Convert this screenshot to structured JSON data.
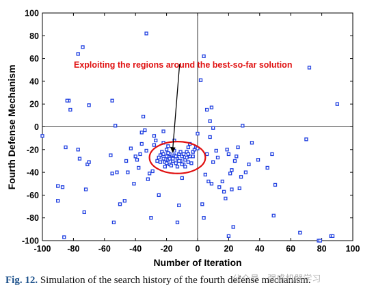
{
  "chart_data": {
    "type": "scatter",
    "xlabel": "Number of Iteration",
    "ylabel": "Fourth Defense Mechanism",
    "xlim": [
      -100,
      100
    ],
    "ylim": [
      -100,
      100
    ],
    "x_ticks": [
      -100,
      -80,
      -60,
      -40,
      -20,
      0,
      20,
      40,
      60,
      80,
      100
    ],
    "y_ticks": [
      -100,
      -80,
      -60,
      -40,
      -20,
      0,
      20,
      40,
      60,
      80,
      100
    ],
    "grid": false,
    "zero_lines": true,
    "marker": "hollow-square",
    "marker_color": "#1f3fe0",
    "annotation": {
      "text": "Exploiting the regions around the best-so-far solution",
      "color": "#e01010",
      "ellipse_center": [
        -13,
        -27
      ],
      "ellipse_radii": [
        18,
        14
      ],
      "arrow_from": [
        -16,
        55
      ],
      "arrow_to": [
        -16,
        -23
      ]
    },
    "points": [
      [
        -100,
        -8
      ],
      [
        -85,
        -18
      ],
      [
        -83,
        23
      ],
      [
        -84,
        23
      ],
      [
        -82,
        15
      ],
      [
        -77,
        64
      ],
      [
        -74,
        70
      ],
      [
        -70,
        19
      ],
      [
        -55,
        23
      ],
      [
        -53,
        1
      ],
      [
        -33,
        82
      ],
      [
        2,
        41
      ],
      [
        4,
        62
      ],
      [
        72,
        52
      ],
      [
        90,
        20
      ],
      [
        -90,
        -52
      ],
      [
        -90,
        -65
      ],
      [
        -87,
        -53
      ],
      [
        -86,
        -97
      ],
      [
        -77,
        -20
      ],
      [
        -76,
        -28
      ],
      [
        -73,
        -75
      ],
      [
        -72,
        -55
      ],
      [
        -71,
        -33
      ],
      [
        -70,
        -31
      ],
      [
        -56,
        -25
      ],
      [
        -55,
        -41
      ],
      [
        -54,
        -84
      ],
      [
        -52,
        -40
      ],
      [
        -50,
        -68
      ],
      [
        -47,
        -65
      ],
      [
        -46,
        -30
      ],
      [
        -45,
        -40
      ],
      [
        -43,
        -19
      ],
      [
        -41,
        -50
      ],
      [
        -40,
        -26
      ],
      [
        -39,
        -29
      ],
      [
        -38,
        -36
      ],
      [
        -37,
        -24
      ],
      [
        -36,
        -15
      ],
      [
        -36,
        -5
      ],
      [
        -35,
        9
      ],
      [
        -34,
        -3
      ],
      [
        -33,
        -21
      ],
      [
        -32,
        -46
      ],
      [
        -31,
        -41
      ],
      [
        -30,
        -80
      ],
      [
        -29,
        -39
      ],
      [
        -28,
        -16
      ],
      [
        -28,
        -8
      ],
      [
        -27,
        -12
      ],
      [
        -26,
        -30
      ],
      [
        -25,
        -60
      ],
      [
        -22,
        -4
      ],
      [
        -22,
        -14
      ],
      [
        -20,
        -20
      ],
      [
        -19,
        -17
      ],
      [
        -18,
        -24
      ],
      [
        -24,
        -25
      ],
      [
        -22,
        -28
      ],
      [
        -21,
        -31
      ],
      [
        -20,
        -26
      ],
      [
        -19,
        -29
      ],
      [
        -18,
        -33
      ],
      [
        -17,
        -27
      ],
      [
        -16,
        -30
      ],
      [
        -15,
        -25
      ],
      [
        -14,
        -32
      ],
      [
        -13,
        -28
      ],
      [
        -12,
        -24
      ],
      [
        -11,
        -30
      ],
      [
        -10,
        -26
      ],
      [
        -9,
        -33
      ],
      [
        -8,
        -29
      ],
      [
        -7,
        -27
      ],
      [
        -6,
        -31
      ],
      [
        -5,
        -26
      ],
      [
        -23,
        -22
      ],
      [
        -21,
        -35
      ],
      [
        -19,
        -23
      ],
      [
        -17,
        -34
      ],
      [
        -15,
        -21
      ],
      [
        -13,
        -35
      ],
      [
        -11,
        -22
      ],
      [
        -9,
        -24
      ],
      [
        -8,
        -35
      ],
      [
        -7,
        -22
      ],
      [
        -4,
        -32
      ],
      [
        -16,
        -28
      ],
      [
        -14,
        -26
      ],
      [
        -12,
        -30
      ],
      [
        -10,
        -33
      ],
      [
        -18,
        -28
      ],
      [
        -20,
        -32
      ],
      [
        -22,
        -24
      ],
      [
        -6,
        -24
      ],
      [
        -3,
        -26
      ],
      [
        -24,
        -31
      ],
      [
        -25,
        -27
      ],
      [
        -15,
        -12
      ],
      [
        -13,
        -84
      ],
      [
        -12,
        -69
      ],
      [
        -10,
        -45
      ],
      [
        -6,
        -18
      ],
      [
        -5,
        -15
      ],
      [
        -3,
        -22
      ],
      [
        -2,
        -20
      ],
      [
        -1,
        -18
      ],
      [
        0,
        -19
      ],
      [
        0,
        -6
      ],
      [
        3,
        -68
      ],
      [
        4,
        -80
      ],
      [
        5,
        -42
      ],
      [
        6,
        -24
      ],
      [
        6,
        15
      ],
      [
        7,
        -48
      ],
      [
        8,
        -9
      ],
      [
        8,
        5
      ],
      [
        9,
        -50
      ],
      [
        9,
        17
      ],
      [
        10,
        -31
      ],
      [
        10,
        -1
      ],
      [
        12,
        -21
      ],
      [
        13,
        -27
      ],
      [
        14,
        -53
      ],
      [
        16,
        -48
      ],
      [
        17,
        -57
      ],
      [
        18,
        -63
      ],
      [
        19,
        -20
      ],
      [
        20,
        -24
      ],
      [
        20,
        -96
      ],
      [
        21,
        -41
      ],
      [
        22,
        -38
      ],
      [
        22,
        -55
      ],
      [
        23,
        -88
      ],
      [
        24,
        -30
      ],
      [
        25,
        -26
      ],
      [
        26,
        -18
      ],
      [
        27,
        -54
      ],
      [
        28,
        -44
      ],
      [
        29,
        1
      ],
      [
        31,
        -40
      ],
      [
        33,
        -33
      ],
      [
        35,
        -14
      ],
      [
        39,
        -29
      ],
      [
        45,
        -36
      ],
      [
        48,
        -24
      ],
      [
        49,
        -78
      ],
      [
        50,
        -51
      ],
      [
        66,
        -93
      ],
      [
        70,
        -11
      ],
      [
        78,
        -100
      ],
      [
        79,
        -100
      ],
      [
        86,
        -96
      ],
      [
        87,
        -96
      ]
    ]
  },
  "caption": {
    "fig_no": "Fig. 12.",
    "text": "Simulation of the search history of the fourth defense mechanism."
  },
  "watermark": "公众号 · 强盛机器学习"
}
